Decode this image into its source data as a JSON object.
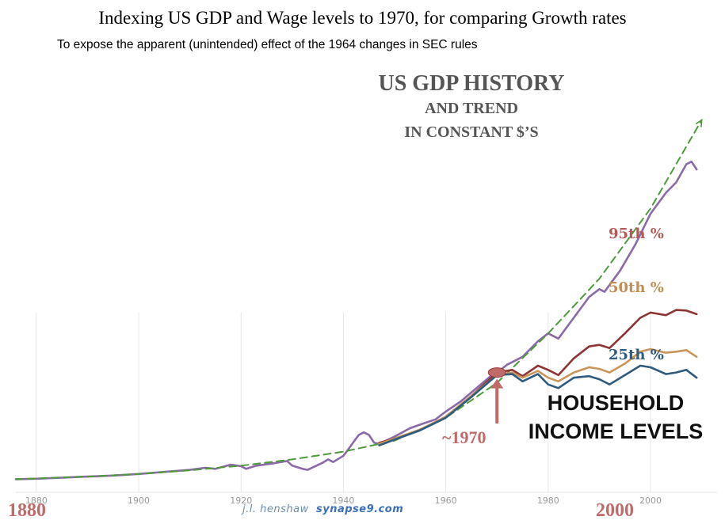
{
  "title": "Indexing US GDP and Wage levels to 1970, for comparing Growth rates",
  "subtitle": "To expose the apparent (unintended) effect of the 1964 changes in SEC rules",
  "gdp_heading": {
    "line1": "US GDP HISTORY",
    "line2": "AND TREND",
    "line3": "IN CONSTANT $’S"
  },
  "household_heading": {
    "line1": "HOUSEHOLD",
    "line2": "INCOME LEVELS"
  },
  "annotation_1970": "~1970",
  "big_year_left": "1880",
  "big_year_right": "2000",
  "credit": {
    "author": "j.l. henshaw",
    "site": "synapse9.com"
  },
  "colors": {
    "gdp": "#8b6aa8",
    "trend": "#4e9a3a",
    "p95": "#8e3434",
    "p50": "#c9965a",
    "p25": "#2f5b7f",
    "annotation": "#c06a6a",
    "grid": "#e6e6e6"
  },
  "chart_data": {
    "type": "line",
    "x_ticks": [
      1880,
      1900,
      1920,
      1940,
      1960,
      1980,
      2000
    ],
    "xlim": [
      1876,
      2013
    ],
    "ylim": [
      0,
      900
    ],
    "grid": true,
    "series": [
      {
        "name": "US GDP HISTORY",
        "color_key": "gdp",
        "x": [
          1876,
          1880,
          1885,
          1890,
          1895,
          1900,
          1905,
          1910,
          1913,
          1915,
          1918,
          1920,
          1921,
          1923,
          1926,
          1929,
          1930,
          1932,
          1933,
          1936,
          1937,
          1938,
          1940,
          1941,
          1942,
          1943,
          1944,
          1945,
          1946,
          1947,
          1950,
          1953,
          1955,
          1958,
          1960,
          1963,
          1966,
          1969,
          1970,
          1972,
          1975,
          1978,
          1980,
          1982,
          1985,
          1988,
          1990,
          1991,
          1994,
          1997,
          2000,
          2003,
          2005,
          2007,
          2008,
          2009
        ],
        "y": [
          10,
          11,
          13,
          15,
          17,
          20,
          24,
          28,
          32,
          30,
          38,
          35,
          30,
          36,
          40,
          45,
          36,
          30,
          28,
          42,
          48,
          43,
          55,
          68,
          82,
          95,
          100,
          95,
          80,
          78,
          92,
          108,
          115,
          125,
          140,
          160,
          185,
          210,
          215,
          230,
          245,
          275,
          290,
          280,
          320,
          360,
          375,
          370,
          410,
          460,
          520,
          560,
          580,
          615,
          620,
          605
        ]
      },
      {
        "name": "TREND",
        "color_key": "trend",
        "x": [
          1876,
          1890,
          1900,
          1910,
          1920,
          1930,
          1940,
          1950,
          1960,
          1970,
          1980,
          1990,
          2000,
          2010
        ],
        "y": [
          10,
          15,
          20,
          27,
          36,
          48,
          63,
          84,
          128,
          195,
          290,
          395,
          530,
          700
        ]
      },
      {
        "name": "95th %",
        "color_key": "p95",
        "x": [
          1947,
          1950,
          1955,
          1960,
          1965,
          1970,
          1973,
          1975,
          1978,
          1980,
          1982,
          1985,
          1988,
          1990,
          1992,
          1995,
          1998,
          2000,
          2003,
          2005,
          2007,
          2009
        ],
        "y": [
          80,
          88,
          105,
          130,
          170,
          215,
          220,
          208,
          228,
          220,
          210,
          242,
          265,
          268,
          262,
          290,
          320,
          330,
          325,
          335,
          334,
          327
        ]
      },
      {
        "name": "50th %",
        "color_key": "p50",
        "x": [
          1947,
          1950,
          1955,
          1960,
          1965,
          1970,
          1973,
          1975,
          1978,
          1980,
          1982,
          1985,
          1988,
          1990,
          1992,
          1995,
          1998,
          2000,
          2003,
          2005,
          2007,
          2009
        ],
        "y": [
          78,
          88,
          105,
          130,
          170,
          210,
          215,
          205,
          218,
          205,
          198,
          215,
          225,
          222,
          215,
          232,
          255,
          260,
          253,
          255,
          258,
          245
        ]
      },
      {
        "name": "25th %",
        "color_key": "p25",
        "x": [
          1947,
          1950,
          1955,
          1960,
          1965,
          1970,
          1973,
          1975,
          1978,
          1980,
          1982,
          1985,
          1988,
          1990,
          1992,
          1995,
          1998,
          2000,
          2003,
          2005,
          2007,
          2009
        ],
        "y": [
          75,
          86,
          104,
          128,
          168,
          210,
          212,
          198,
          212,
          192,
          185,
          205,
          208,
          202,
          192,
          210,
          228,
          225,
          212,
          215,
          220,
          205
        ]
      }
    ],
    "labels": {
      "p95": "95th %",
      "p50": "50th %",
      "p25": "25th %"
    },
    "annotation_x": 1970
  }
}
